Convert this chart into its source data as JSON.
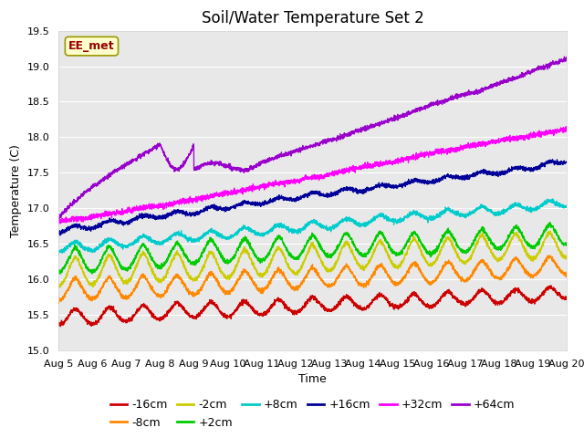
{
  "title": "Soil/Water Temperature Set 2",
  "xlabel": "Time",
  "ylabel": "Temperature (C)",
  "ylim": [
    15.0,
    19.5
  ],
  "xlim": [
    0,
    360
  ],
  "xtick_labels": [
    "Aug 5",
    "Aug 6",
    "Aug 7",
    "Aug 8",
    "Aug 9",
    "Aug 10",
    "Aug 11",
    "Aug 12",
    "Aug 13",
    "Aug 14",
    "Aug 15",
    "Aug 16",
    "Aug 17",
    "Aug 18",
    "Aug 19",
    "Aug 20"
  ],
  "xtick_positions": [
    0,
    24,
    48,
    72,
    96,
    120,
    144,
    168,
    192,
    216,
    240,
    264,
    288,
    312,
    336,
    360
  ],
  "series": [
    {
      "label": "-16cm",
      "color": "#cc0000",
      "base_start": 15.58,
      "base_end": 15.93,
      "amp": 0.2,
      "amp_end": 0.18
    },
    {
      "label": "-8cm",
      "color": "#ff8800",
      "base_start": 15.98,
      "base_end": 16.32,
      "amp": 0.28,
      "amp_end": 0.26
    },
    {
      "label": "-2cm",
      "color": "#cccc00",
      "base_start": 16.28,
      "base_end": 16.6,
      "amp": 0.38,
      "amp_end": 0.36
    },
    {
      "label": "+2cm",
      "color": "#00cc00",
      "base_start": 16.42,
      "base_end": 16.78,
      "amp": 0.32,
      "amp_end": 0.3
    },
    {
      "label": "+8cm",
      "color": "#00cccc",
      "base_start": 16.5,
      "base_end": 17.08,
      "amp": 0.12,
      "amp_end": 0.1
    },
    {
      "label": "+16cm",
      "color": "#000099",
      "base_start": 16.7,
      "base_end": 17.72,
      "amp": 0.06,
      "amp_end": 0.05
    },
    {
      "label": "+32cm",
      "color": "#ff00ff",
      "base_start": 16.8,
      "base_end": 18.15,
      "amp": 0.02,
      "amp_end": 0.02
    },
    {
      "label": "+64cm",
      "color": "#9900cc",
      "base_start": 16.85,
      "base_end": 19.02,
      "amp": 0.01,
      "amp_end": 0.01
    }
  ],
  "n_points": 3600,
  "background_color": "#e8e8e8",
  "figure_color": "#ffffff",
  "grid_color": "#ffffff",
  "title_fontsize": 12,
  "label_fontsize": 9,
  "tick_fontsize": 8,
  "legend_fontsize": 9,
  "ee_met_label": "EE_met",
  "ee_met_color": "#990000",
  "ee_met_bg": "#ffffcc",
  "ee_met_border": "#999900"
}
